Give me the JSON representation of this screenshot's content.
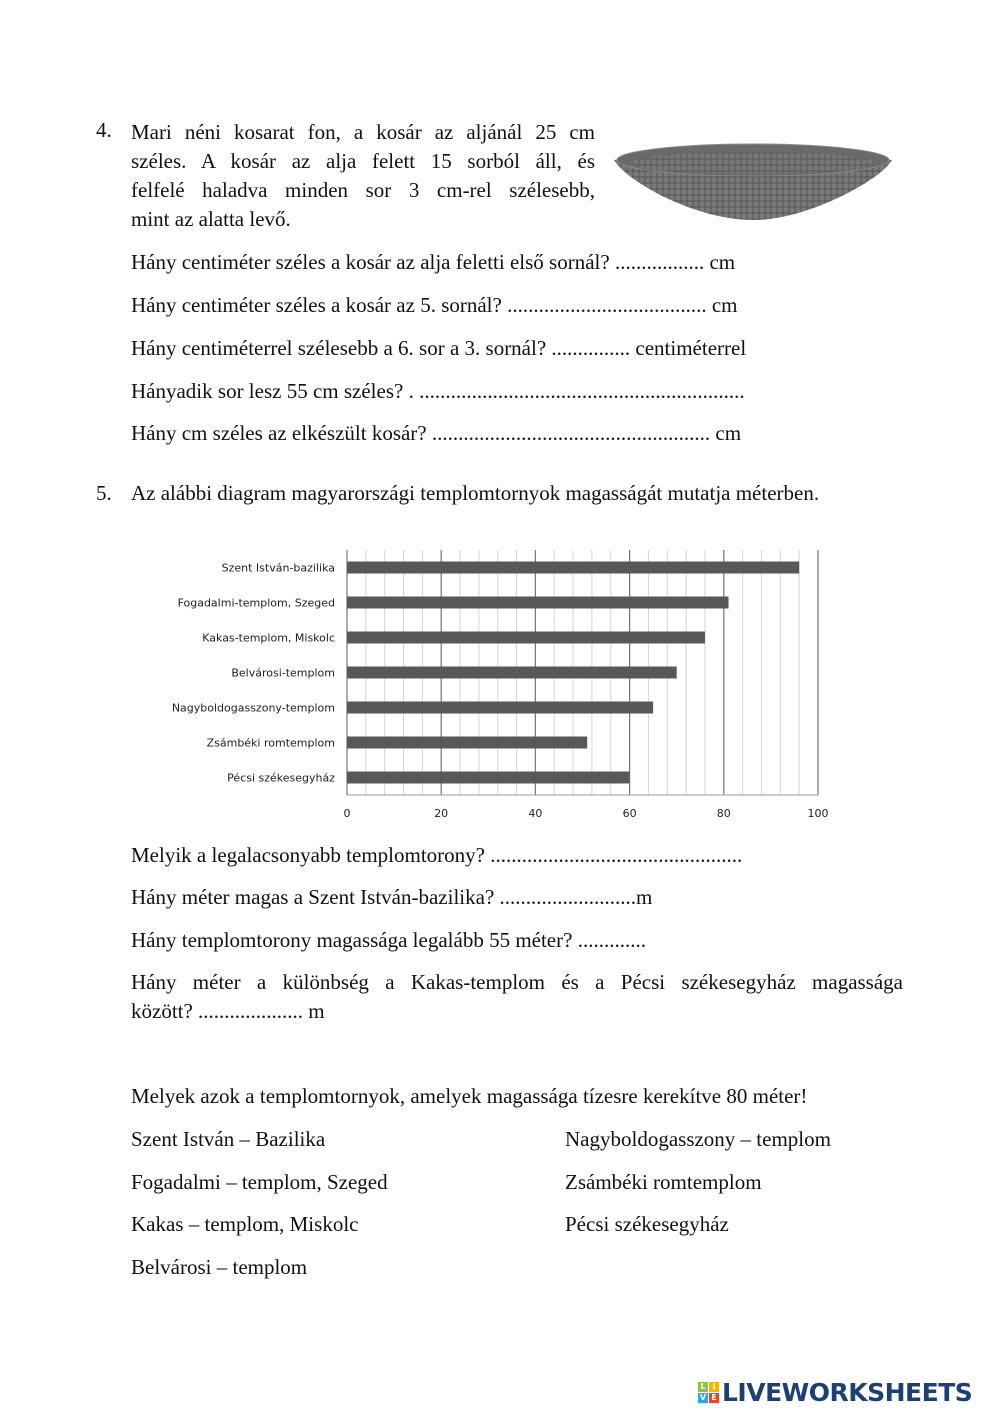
{
  "task4": {
    "number": "4.",
    "intro_lines": [
      "Mari néni kosarat fon, a kosár az aljánál 25 cm",
      "széles. A kosár az alja felett 15 sorból áll, és",
      "felfelé haladva minden sor 3 cm-rel szélesebb,",
      "mint az alatta levő."
    ],
    "questions": [
      "Hány centiméter széles a kosár az alja feletti első sornál? .................  cm",
      "Hány centiméter széles a kosár az 5. sornál? ......................................  cm",
      "Hány centiméterrel szélesebb a 6. sor a 3. sornál? ............... centiméterrel",
      "Hányadik sor lesz 55 cm széles? . ..............................................................",
      "Hány cm széles az elkészült kosár? .....................................................  cm"
    ],
    "image_icon": "basket-image"
  },
  "task5": {
    "number": "5.",
    "intro": "Az alábbi diagram magyarországi templomtornyok magasságát mutatja méterben.",
    "questions": [
      "Melyik a legalacsonyabb templomtorony?  ................................................",
      "Hány méter magas a Szent István-bazilika? ..........................m",
      "Hány templomtorony magassága legalább 55 méter? .............",
      "Hány méter a különbség a Kakas-templom és a Pécsi székesegyház magassága",
      "között?  .................... m"
    ],
    "rounding_question": "Melyek azok a templomtornyok, amelyek magassága tízesre kerekítve 80 méter!",
    "options_left": [
      "Szent István – Bazilika",
      "Fogadalmi – templom, Szeged",
      "Kakas – templom, Miskolc",
      "Belvárosi – templom"
    ],
    "options_right": [
      "Nagyboldogasszony – templom",
      "Zsámbéki romtemplom",
      "Pécsi székesegyház"
    ]
  },
  "chart_data": {
    "type": "bar",
    "orientation": "horizontal",
    "categories": [
      "Szent István-bazilika",
      "Fogadalmi-templom, Szeged",
      "Kakas-templom, Miskolc",
      "Belvárosi-templom",
      "Nagyboldogasszony-templom",
      "Zsámbéki romtemplom",
      "Pécsi székesegyház"
    ],
    "values": [
      96,
      81,
      76,
      70,
      65,
      51,
      60
    ],
    "xlim": [
      0,
      100
    ],
    "xticks": [
      "0",
      "20",
      "40",
      "60",
      "80",
      "100"
    ],
    "minor_grid_step": 4,
    "grid": true,
    "bar_color": "#58585a",
    "title": "",
    "xlabel": "",
    "ylabel": ""
  },
  "footer": {
    "brand": "LIVEWORKSHEETS",
    "cube_letters": [
      "L",
      "I",
      "V",
      "E"
    ],
    "brand_color": "#1d3f73"
  }
}
